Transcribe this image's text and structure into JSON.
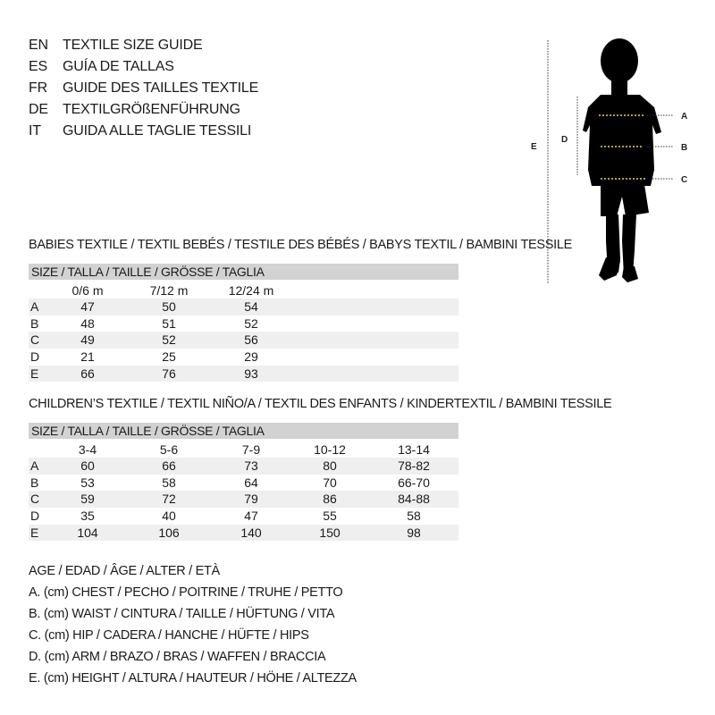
{
  "languages": [
    {
      "code": "EN",
      "title": "TEXTILE SIZE GUIDE"
    },
    {
      "code": "ES",
      "title": "GUÍA DE TALLAS"
    },
    {
      "code": "FR",
      "title": "GUIDE DES TAILLES TEXTILE"
    },
    {
      "code": "DE",
      "title": "TEXTILGRÖßENFÜHRUNG"
    },
    {
      "code": "IT",
      "title": "GUIDA ALLE TAGLIE TESSILI"
    }
  ],
  "babies": {
    "title": "BABIES TEXTILE / TEXTIL BEBÉS / TESTILE DES BÉBÉS / BABYS TEXTIL / BAMBINI TESSILE",
    "size_header": "SIZE / TALLA / TAILLE / GRÖSSE / TAGLIA",
    "columns": [
      "0/6 m",
      "7/12 m",
      "12/24 m"
    ],
    "rows": [
      {
        "label": "A",
        "values": [
          "47",
          "50",
          "54"
        ]
      },
      {
        "label": "B",
        "values": [
          "48",
          "51",
          "52"
        ]
      },
      {
        "label": "C",
        "values": [
          "49",
          "52",
          "56"
        ]
      },
      {
        "label": "D",
        "values": [
          "21",
          "25",
          "29"
        ]
      },
      {
        "label": "E",
        "values": [
          "66",
          "76",
          "93"
        ]
      }
    ]
  },
  "children": {
    "title": "CHILDREN’S TEXTILE / TEXTIL NIÑO/A / TEXTIL DES ENFANTS / KINDERTEXTIL / BAMBINI TESSILE",
    "size_header": "SIZE / TALLA / TAILLE / GRÖSSE / TAGLIA",
    "columns": [
      "3-4",
      "5-6",
      "7-9",
      "10-12",
      "13-14"
    ],
    "rows": [
      {
        "label": "A",
        "values": [
          "60",
          "66",
          "73",
          "80",
          "78-82"
        ]
      },
      {
        "label": "B",
        "values": [
          "53",
          "58",
          "64",
          "70",
          "66-70"
        ]
      },
      {
        "label": "C",
        "values": [
          "59",
          "72",
          "79",
          "86",
          "84-88"
        ]
      },
      {
        "label": "D",
        "values": [
          "35",
          "40",
          "47",
          "55",
          "58"
        ]
      },
      {
        "label": "E",
        "values": [
          "104",
          "106",
          "140",
          "150",
          "98"
        ]
      }
    ]
  },
  "legend": [
    "AGE / EDAD / ÂGE / ALTER / ETÀ",
    "A. (cm) CHEST / PECHO / POITRINE / TRUHE / PETTO",
    "B. (cm) WAIST / CINTURA / TAILLE / HÜFTUNG / VITA",
    "C. (cm) HIP / CADERA / HANCHE / HÜFTE / HIPS",
    "D. (cm) ARM / BRAZO / BRAS / WAFFEN / BRACCIA",
    "E. (cm) HEIGHT / ALTURA / HAUTEUR / HÖHE / ALTEZZA"
  ],
  "figure": {
    "labels": {
      "a": "A",
      "b": "B",
      "c": "C",
      "d": "D",
      "e": "E"
    },
    "measure_line_color": "#e8d84a"
  }
}
